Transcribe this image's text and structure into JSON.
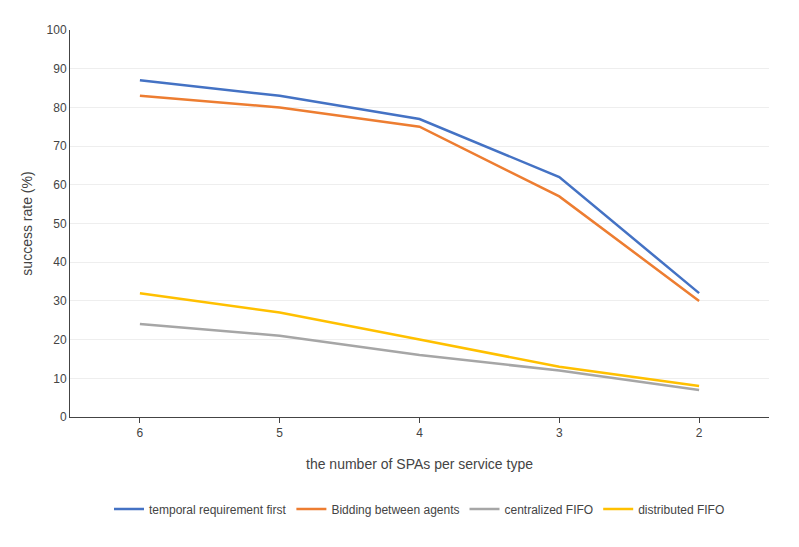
{
  "chart_data": {
    "type": "line",
    "x": [
      6,
      5,
      4,
      3,
      2
    ],
    "series": [
      {
        "name": "temporal requirement first",
        "color": "#4472C4",
        "values": [
          87,
          83,
          77,
          62,
          32
        ]
      },
      {
        "name": "Bidding between agents",
        "color": "#ED7D31",
        "values": [
          83,
          80,
          75,
          57,
          30
        ]
      },
      {
        "name": "centralized FIFO",
        "color": "#A6A6A6",
        "values": [
          24,
          21,
          16,
          12,
          7
        ]
      },
      {
        "name": "distributed FIFO",
        "color": "#FFC000",
        "values": [
          32,
          27,
          20,
          13,
          8
        ]
      }
    ],
    "xlabel": "the number of SPAs per service type",
    "ylabel": "success rate (%)",
    "xlim": [
      6.5,
      1.5
    ],
    "ylim": [
      0,
      100
    ],
    "xticks": [
      6,
      5,
      4,
      3,
      2
    ],
    "yticks": [
      0,
      10,
      20,
      30,
      40,
      50,
      60,
      70,
      80,
      90,
      100
    ],
    "grid": true,
    "legend": "bottom"
  }
}
